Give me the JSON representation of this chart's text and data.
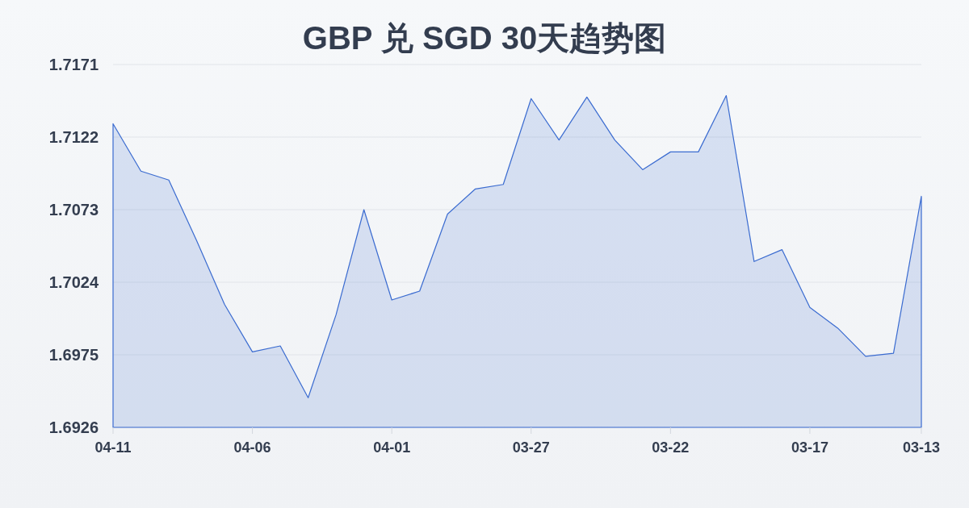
{
  "chart_data": {
    "type": "area",
    "title": "GBP 兑 SGD 30天趋势图",
    "categories": [
      "04-11",
      null,
      null,
      null,
      null,
      "04-06",
      null,
      null,
      null,
      null,
      "04-01",
      null,
      null,
      null,
      null,
      "03-27",
      null,
      null,
      null,
      null,
      "03-22",
      null,
      null,
      null,
      null,
      "03-17",
      null,
      null,
      null,
      "03-13"
    ],
    "series": [
      {
        "color": "#3a6bd0",
        "values": [
          1.7131,
          1.7099,
          1.7093,
          1.7052,
          1.7009,
          1.6977,
          1.6981,
          1.6946,
          1.7002,
          1.7073,
          1.7012,
          1.7018,
          1.707,
          1.7087,
          1.709,
          1.7148,
          1.712,
          1.7149,
          1.712,
          1.71,
          1.7112,
          1.7112,
          1.715,
          1.7038,
          1.7046,
          1.7007,
          1.6993,
          1.6974,
          1.6976,
          1.7082
        ]
      }
    ],
    "ylim": [
      1.6926,
      1.7171
    ],
    "yticks": [
      1.6926,
      1.6975,
      1.7024,
      1.7073,
      1.7122,
      1.7171
    ],
    "grid": "y"
  }
}
